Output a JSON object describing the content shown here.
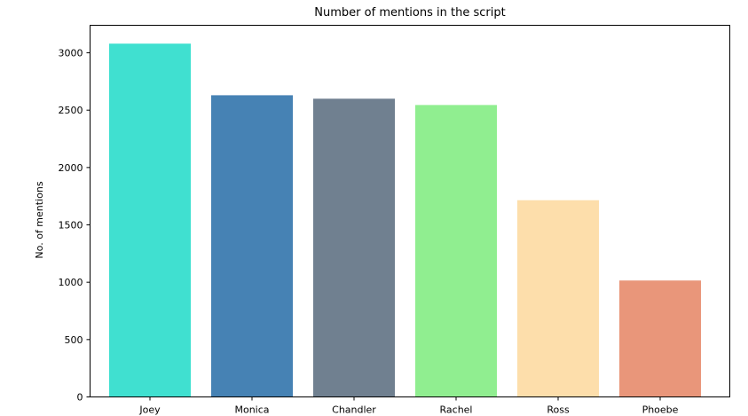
{
  "chart_data": {
    "type": "bar",
    "title": "Number of mentions in the script",
    "xlabel": "",
    "ylabel": "No. of mentions",
    "categories": [
      "Joey",
      "Monica",
      "Chandler",
      "Rachel",
      "Ross",
      "Phoebe"
    ],
    "values": [
      3080,
      2630,
      2600,
      2545,
      1715,
      1015
    ],
    "colors": [
      "#40e0d0",
      "#4682b4",
      "#708090",
      "#90ee90",
      "#fddeab",
      "#e9967a"
    ],
    "ylim": [
      0,
      3240
    ],
    "yticks": [
      0,
      500,
      1000,
      1500,
      2000,
      2500,
      3000
    ],
    "ytick_labels": [
      "0",
      "500",
      "1000",
      "1500",
      "2000",
      "2500",
      "3000"
    ],
    "grid": false,
    "legend": "none"
  }
}
